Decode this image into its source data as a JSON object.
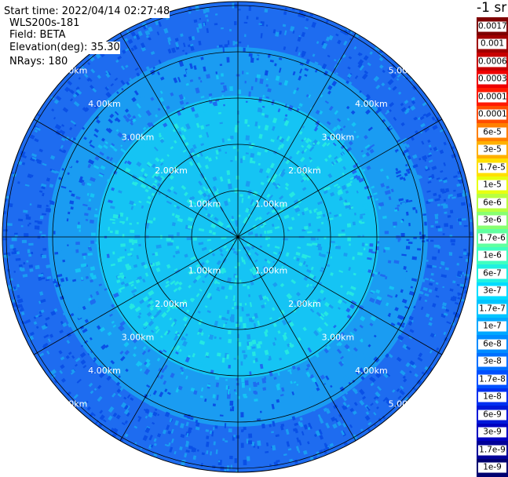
{
  "header": {
    "start_time": "Start time: 2022/04/14 02:27:48",
    "instrument": "WLS200s-181",
    "field": "Field: BETA",
    "elevation": "Elevation(deg): 35.30",
    "nrays": "NRays: 180"
  },
  "colorbar": {
    "unit": "-1 sr",
    "levels": [
      {
        "label": "0.0017",
        "color": "#7f0000"
      },
      {
        "label": "0.001",
        "color": "#a00000"
      },
      {
        "label": "0.0006",
        "color": "#c80000"
      },
      {
        "label": "0.0003",
        "color": "#ee0000"
      },
      {
        "label": "0.00017",
        "color": "#ff1a00"
      },
      {
        "label": "0.0001",
        "color": "#ff4d00"
      },
      {
        "label": "6e-5",
        "color": "#ff8000"
      },
      {
        "label": "3e-5",
        "color": "#ffb000"
      },
      {
        "label": "1.7e-5",
        "color": "#ffe000"
      },
      {
        "label": "1e-5",
        "color": "#e8ff10"
      },
      {
        "label": "6e-6",
        "color": "#b8ff40"
      },
      {
        "label": "3e-6",
        "color": "#88ff70"
      },
      {
        "label": "1.7e-6",
        "color": "#60ffa0"
      },
      {
        "label": "1e-6",
        "color": "#40ffc0"
      },
      {
        "label": "6e-7",
        "color": "#20f0e0"
      },
      {
        "label": "3e-7",
        "color": "#00dcff"
      },
      {
        "label": "1.7e-7",
        "color": "#00c4ff"
      },
      {
        "label": "1e-7",
        "color": "#00a8ff"
      },
      {
        "label": "6e-8",
        "color": "#008cff"
      },
      {
        "label": "3e-8",
        "color": "#0070ff"
      },
      {
        "label": "1.7e-8",
        "color": "#0050ff"
      },
      {
        "label": "1e-8",
        "color": "#0030f0"
      },
      {
        "label": "6e-9",
        "color": "#0018d8"
      },
      {
        "label": "3e-9",
        "color": "#0000c0"
      },
      {
        "label": "1.7e-9",
        "color": "#000098"
      },
      {
        "label": "1e-9",
        "color": "#000070"
      }
    ]
  },
  "ring_labels": [
    "1.00km",
    "2.00km",
    "3.00km",
    "4.00km",
    "5.00km"
  ],
  "colors": {
    "outer": "#1e6cf0",
    "middle": "#1a9cf2",
    "inner": "#15c4f4",
    "speckle_dark": "#0a50e6",
    "speckle_light": "#25e8e2",
    "grid": "#000000",
    "label": "#ffffff"
  }
}
